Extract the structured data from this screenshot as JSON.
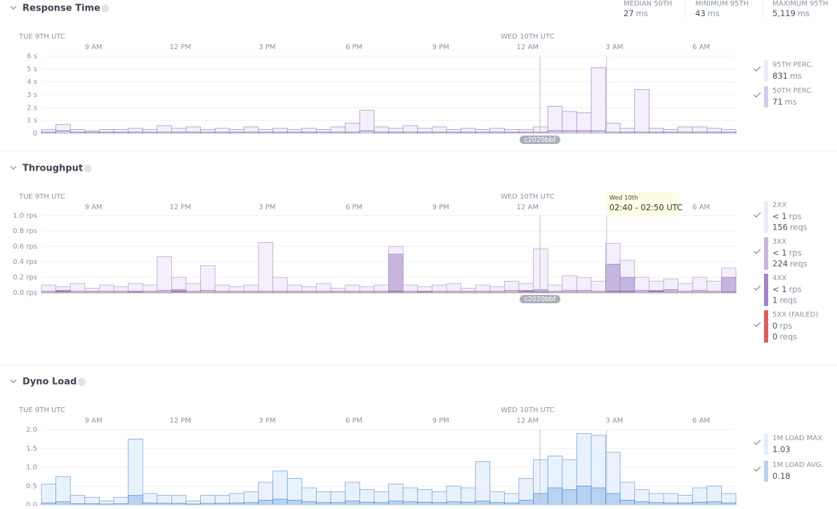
{
  "chart_data": [
    {
      "type": "bar",
      "title": "Response Time",
      "stats": [
        {
          "label": "MEDIAN 50TH",
          "value": "27",
          "unit": "ms"
        },
        {
          "label": "MINIMUM 95TH",
          "value": "43",
          "unit": "ms"
        },
        {
          "label": "MAXIMUM 95TH",
          "value": "5,119",
          "unit": "ms"
        }
      ],
      "day_labels": [
        {
          "value": 7.2,
          "label": "TUE 9TH UTC"
        },
        {
          "value": 24,
          "label": "WED 10TH UTC"
        }
      ],
      "xlim": [
        7.2,
        31.2
      ],
      "xticks": [
        {
          "value": 9,
          "label": "9 AM"
        },
        {
          "value": 12,
          "label": "12 PM"
        },
        {
          "value": 15,
          "label": "3 PM"
        },
        {
          "value": 18,
          "label": "6 PM"
        },
        {
          "value": 21,
          "label": "9 PM"
        },
        {
          "value": 24,
          "label": "12 AM"
        },
        {
          "value": 27,
          "label": "3 AM"
        },
        {
          "value": 30,
          "label": "6 AM"
        }
      ],
      "ylim": [
        0,
        6
      ],
      "yticks": [
        0,
        {
          "value": 1,
          "label": "1 s"
        },
        {
          "value": 2,
          "label": "2 s"
        },
        {
          "value": 3,
          "label": "3 s"
        },
        {
          "value": 4,
          "label": "4 s"
        },
        {
          "value": 5,
          "label": "5 s"
        },
        {
          "value": 6,
          "label": "6 s"
        }
      ],
      "markers": [
        {
          "x": 24.43,
          "label": "c2020bbf"
        },
        {
          "x": 26.73
        }
      ],
      "x": [
        7.2,
        7.7,
        8.2,
        8.7,
        9.2,
        9.7,
        10.2,
        10.7,
        11.2,
        11.7,
        12.2,
        12.7,
        13.2,
        13.7,
        14.2,
        14.7,
        15.2,
        15.7,
        16.2,
        16.7,
        17.2,
        17.7,
        18.2,
        18.7,
        19.2,
        19.7,
        20.2,
        20.7,
        21.2,
        21.7,
        22.2,
        22.7,
        23.2,
        23.7,
        24.2,
        24.7,
        25.2,
        25.7,
        26.2,
        26.7,
        27.2,
        27.7,
        28.2,
        28.7,
        29.2,
        29.7,
        30.2,
        30.7
      ],
      "series": [
        {
          "name": "95TH PERC.",
          "color": "#f4effa",
          "stroke": "#ab92cc",
          "legend": [
            {
              "value": "831",
              "unit": "ms"
            }
          ],
          "values": [
            0.3,
            0.7,
            0.3,
            0.2,
            0.3,
            0.3,
            0.4,
            0.3,
            0.6,
            0.4,
            0.5,
            0.3,
            0.4,
            0.3,
            0.5,
            0.3,
            0.4,
            0.3,
            0.4,
            0.3,
            0.5,
            0.8,
            1.8,
            0.5,
            0.4,
            0.6,
            0.4,
            0.5,
            0.3,
            0.4,
            0.3,
            0.4,
            0.3,
            0.3,
            0.5,
            2.1,
            1.7,
            1.6,
            5.1,
            0.8,
            0.4,
            3.4,
            0.4,
            0.3,
            0.5,
            0.5,
            0.4,
            0.3
          ]
        },
        {
          "name": "50TH PERC.",
          "color": "#d8cbe9",
          "stroke": "#8263b0",
          "legend": [
            {
              "value": "71",
              "unit": "ms"
            }
          ],
          "values": [
            0.1,
            0.2,
            0.1,
            0.1,
            0.1,
            0.1,
            0.1,
            0.1,
            0.1,
            0.1,
            0.1,
            0.1,
            0.1,
            0.1,
            0.1,
            0.1,
            0.1,
            0.1,
            0.1,
            0.1,
            0.1,
            0.1,
            0.2,
            0.1,
            0.1,
            0.1,
            0.1,
            0.1,
            0.1,
            0.1,
            0.1,
            0.1,
            0.1,
            0.1,
            0.1,
            0.2,
            0.2,
            0.2,
            0.2,
            0.1,
            0.1,
            0.1,
            0.1,
            0.1,
            0.1,
            0.1,
            0.1,
            0.1
          ]
        }
      ]
    },
    {
      "type": "bar",
      "title": "Throughput",
      "day_labels": [
        {
          "value": 7.2,
          "label": "TUE 9TH UTC"
        },
        {
          "value": 24,
          "label": "WED 10TH UTC"
        }
      ],
      "xlim": [
        7.2,
        31.2
      ],
      "xticks": [
        {
          "value": 9,
          "label": "9 AM"
        },
        {
          "value": 12,
          "label": "12 PM"
        },
        {
          "value": 15,
          "label": "3 PM"
        },
        {
          "value": 18,
          "label": "6 PM"
        },
        {
          "value": 21,
          "label": "9 PM"
        },
        {
          "value": 24,
          "label": "12 AM"
        },
        {
          "value": 27,
          "label": "3 AM"
        },
        {
          "value": 30,
          "label": "6 AM"
        }
      ],
      "ylim": [
        0,
        1
      ],
      "yticks": [
        {
          "value": 0,
          "label": "0.0 rps"
        },
        {
          "value": 0.2,
          "label": "0.2 rps"
        },
        {
          "value": 0.4,
          "label": "0.4 rps"
        },
        {
          "value": 0.6,
          "label": "0.6 rps"
        },
        {
          "value": 0.8,
          "label": "0.8 rps"
        },
        {
          "value": 1,
          "label": "1.0 rps"
        }
      ],
      "markers": [
        {
          "x": 24.43,
          "label": "c2020bbf"
        },
        {
          "x": 26.73
        }
      ],
      "tooltip": {
        "date": "Wed 10th",
        "range": "02:40 - 02:50 UTC"
      },
      "x": [
        7.2,
        7.7,
        8.2,
        8.7,
        9.2,
        9.7,
        10.2,
        10.7,
        11.2,
        11.7,
        12.2,
        12.7,
        13.2,
        13.7,
        14.2,
        14.7,
        15.2,
        15.7,
        16.2,
        16.7,
        17.2,
        17.7,
        18.2,
        18.7,
        19.2,
        19.7,
        20.2,
        20.7,
        21.2,
        21.7,
        22.2,
        22.7,
        23.2,
        23.7,
        24.2,
        24.7,
        25.2,
        25.7,
        26.2,
        26.7,
        27.2,
        27.7,
        28.2,
        28.7,
        29.2,
        29.7,
        30.2,
        30.7
      ],
      "series": [
        {
          "name": "2XX",
          "color": "#f4effa",
          "stroke": "#b9a6d5",
          "legend": [
            {
              "value": "< 1",
              "unit": "rps"
            },
            {
              "value": "156",
              "unit": "reqs"
            }
          ],
          "values": [
            0.1,
            0.08,
            0.12,
            0.06,
            0.1,
            0.08,
            0.12,
            0.1,
            0.47,
            0.2,
            0.12,
            0.35,
            0.1,
            0.08,
            0.1,
            0.65,
            0.2,
            0.1,
            0.08,
            0.12,
            0.06,
            0.1,
            0.08,
            0.1,
            0.6,
            0.1,
            0.08,
            0.1,
            0.12,
            0.06,
            0.1,
            0.08,
            0.15,
            0.12,
            0.57,
            0.1,
            0.22,
            0.2,
            0.15,
            0.64,
            0.42,
            0.2,
            0.15,
            0.18,
            0.12,
            0.2,
            0.15,
            0.32
          ]
        },
        {
          "name": "3XX",
          "color": "#c6b5df",
          "stroke": "#9f87c6",
          "legend": [
            {
              "value": "< 1",
              "unit": "rps"
            },
            {
              "value": "224",
              "unit": "reqs"
            }
          ],
          "values": [
            0.02,
            0.03,
            0.02,
            0.02,
            0.02,
            0.02,
            0.02,
            0.02,
            0.03,
            0.04,
            0.02,
            0.03,
            0.02,
            0.02,
            0.02,
            0.02,
            0.02,
            0.02,
            0.02,
            0.02,
            0.02,
            0.02,
            0.02,
            0.02,
            0.5,
            0.02,
            0.02,
            0.02,
            0.02,
            0.02,
            0.02,
            0.02,
            0.03,
            0.03,
            0.04,
            0.02,
            0.03,
            0.03,
            0.02,
            0.37,
            0.2,
            0.03,
            0.03,
            0.04,
            0.02,
            0.03,
            0.02,
            0.2
          ]
        },
        {
          "name": "4XX",
          "color": "#a286c6",
          "stroke": "#7c5fae",
          "legend": [
            {
              "value": "< 1",
              "unit": "rps"
            },
            {
              "value": "1",
              "unit": "reqs"
            }
          ],
          "values": [
            0,
            0.02,
            0,
            0,
            0,
            0,
            0.01,
            0,
            0,
            0.02,
            0,
            0,
            0,
            0,
            0,
            0,
            0,
            0,
            0,
            0,
            0,
            0,
            0,
            0,
            0.02,
            0,
            0.01,
            0,
            0,
            0,
            0,
            0,
            0,
            0.02,
            0.01,
            0,
            0,
            0,
            0,
            0.02,
            0.02,
            0,
            0.02,
            0,
            0,
            0,
            0,
            0.01
          ]
        },
        {
          "name": "5XX (FAILED)",
          "color": "#d9625f",
          "stroke": "#d9625f",
          "legend": [
            {
              "value": "0",
              "unit": "rps"
            },
            {
              "value": "0",
              "unit": "reqs"
            }
          ],
          "values": [
            0,
            0,
            0,
            0,
            0,
            0,
            0,
            0,
            0,
            0,
            0,
            0,
            0,
            0,
            0,
            0,
            0,
            0,
            0,
            0,
            0,
            0,
            0,
            0,
            0,
            0,
            0,
            0,
            0,
            0,
            0,
            0,
            0,
            0,
            0,
            0,
            0,
            0,
            0,
            0,
            0,
            0,
            0,
            0,
            0,
            0,
            0,
            0
          ]
        }
      ]
    },
    {
      "type": "bar",
      "title": "Dyno Load",
      "day_labels": [
        {
          "value": 7.2,
          "label": "TUE 9TH UTC"
        },
        {
          "value": 24,
          "label": "WED 10TH UTC"
        }
      ],
      "xlim": [
        7.2,
        31.2
      ],
      "xticks": [
        {
          "value": 9,
          "label": "9 AM"
        },
        {
          "value": 12,
          "label": "12 PM"
        },
        {
          "value": 15,
          "label": "3 PM"
        },
        {
          "value": 18,
          "label": "6 PM"
        },
        {
          "value": 21,
          "label": "9 PM"
        },
        {
          "value": 24,
          "label": "12 AM"
        },
        {
          "value": 27,
          "label": "3 AM"
        },
        {
          "value": 30,
          "label": "6 AM"
        }
      ],
      "ylim": [
        0,
        2
      ],
      "yticks": [
        {
          "value": 0,
          "label": "0.0"
        },
        {
          "value": 0.5,
          "label": "0.5"
        },
        {
          "value": 1,
          "label": "1.0"
        },
        {
          "value": 1.5,
          "label": "1.5"
        },
        {
          "value": 2,
          "label": "2.0"
        }
      ],
      "markers": [
        {
          "x": 24.43
        },
        {
          "x": 26.73
        }
      ],
      "x": [
        7.2,
        7.7,
        8.2,
        8.7,
        9.2,
        9.7,
        10.2,
        10.7,
        11.2,
        11.7,
        12.2,
        12.7,
        13.2,
        13.7,
        14.2,
        14.7,
        15.2,
        15.7,
        16.2,
        16.7,
        17.2,
        17.7,
        18.2,
        18.7,
        19.2,
        19.7,
        20.2,
        20.7,
        21.2,
        21.7,
        22.2,
        22.7,
        23.2,
        23.7,
        24.2,
        24.7,
        25.2,
        25.7,
        26.2,
        26.7,
        27.2,
        27.7,
        28.2,
        28.7,
        29.2,
        29.7,
        30.2,
        30.7
      ],
      "series": [
        {
          "name": "1M LOAD MAX",
          "color": "#e9f2fc",
          "stroke": "#78a6dc",
          "legend": [
            {
              "value": "1.03",
              "unit": ""
            }
          ],
          "values": [
            0.55,
            0.75,
            0.25,
            0.2,
            0.1,
            0.2,
            1.75,
            0.3,
            0.25,
            0.25,
            0.1,
            0.25,
            0.25,
            0.3,
            0.35,
            0.6,
            0.9,
            0.7,
            0.45,
            0.35,
            0.35,
            0.6,
            0.4,
            0.35,
            0.55,
            0.45,
            0.4,
            0.35,
            0.5,
            0.45,
            1.15,
            0.35,
            0.3,
            0.7,
            1.2,
            1.3,
            1.2,
            1.9,
            1.85,
            1.4,
            0.6,
            0.4,
            0.3,
            0.3,
            0.25,
            0.45,
            0.5,
            0.3
          ]
        },
        {
          "name": "1M LOAD AVG.",
          "color": "#b7d3f3",
          "stroke": "#5c90d1",
          "legend": [
            {
              "value": "0.18",
              "unit": ""
            }
          ],
          "values": [
            0.05,
            0.08,
            0.03,
            0.03,
            0.02,
            0.03,
            0.25,
            0.05,
            0.04,
            0.04,
            0.02,
            0.04,
            0.04,
            0.05,
            0.06,
            0.12,
            0.15,
            0.12,
            0.08,
            0.06,
            0.06,
            0.1,
            0.07,
            0.06,
            0.1,
            0.08,
            0.07,
            0.06,
            0.08,
            0.07,
            0.1,
            0.06,
            0.05,
            0.12,
            0.3,
            0.45,
            0.4,
            0.5,
            0.45,
            0.3,
            0.12,
            0.08,
            0.06,
            0.05,
            0.05,
            0.07,
            0.08,
            0.05
          ]
        }
      ]
    }
  ]
}
